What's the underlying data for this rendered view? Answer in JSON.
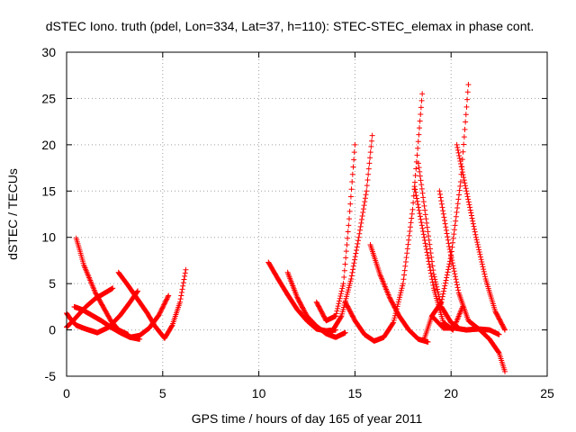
{
  "chart_data": {
    "type": "scatter",
    "title": "dSTEC Iono. truth (pdel, Lon=334, Lat=37, h=110): STEC-STEC_elemax in phase cont.",
    "xlabel": "GPS time / hours of day 165 of year 2011",
    "ylabel": "dSTEC  / TECUs",
    "xlim": [
      0,
      25
    ],
    "ylim": [
      -5,
      30
    ],
    "xticks": [
      0,
      5,
      10,
      15,
      20,
      25
    ],
    "yticks": [
      -5,
      0,
      5,
      10,
      15,
      20,
      25,
      30
    ],
    "xtick_labels": [
      "0",
      "5",
      "10",
      "15",
      "20",
      "25"
    ],
    "ytick_labels": [
      "-5",
      "0",
      "5",
      "10",
      "15",
      "20",
      "25",
      "30"
    ],
    "grid": true,
    "marker": "plus",
    "color": "#ff0000",
    "series": [
      {
        "x": [
          0.0,
          0.3,
          0.6,
          1.0,
          1.5,
          2.0,
          2.4
        ],
        "y": [
          0.3,
          0.9,
          1.6,
          2.5,
          3.4,
          4.0,
          4.5
        ]
      },
      {
        "x": [
          0.0,
          0.2,
          0.5,
          1.0,
          1.6,
          2.2,
          2.8,
          3.3,
          3.7
        ],
        "y": [
          1.8,
          1.2,
          0.5,
          0.1,
          -0.3,
          0.3,
          1.6,
          3.0,
          4.2
        ]
      },
      {
        "x": [
          0.4,
          0.8,
          1.3,
          1.8,
          2.3,
          2.8,
          3.3,
          3.8
        ],
        "y": [
          2.5,
          2.2,
          1.6,
          1.0,
          0.3,
          -0.3,
          -0.8,
          -1.0
        ]
      },
      {
        "x": [
          0.5,
          0.7,
          0.9,
          1.2,
          1.5,
          1.9,
          2.3,
          2.7,
          3.2
        ],
        "y": [
          9.9,
          8.5,
          7.0,
          5.5,
          4.0,
          2.5,
          1.0,
          0.0,
          -0.5
        ]
      },
      {
        "x": [
          2.7,
          3.2,
          3.7,
          4.2,
          4.6,
          5.1,
          5.5,
          5.9,
          6.2
        ],
        "y": [
          6.2,
          4.8,
          3.3,
          1.8,
          0.4,
          -0.9,
          0.5,
          3.0,
          6.5
        ]
      },
      {
        "x": [
          3.3,
          3.8,
          4.3,
          4.8,
          5.3
        ],
        "y": [
          -0.8,
          -0.6,
          0.2,
          1.6,
          3.7
        ]
      },
      {
        "x": [
          10.5,
          11.0,
          11.5,
          12.0,
          12.5,
          13.0,
          13.5,
          14.0
        ],
        "y": [
          7.3,
          5.5,
          3.8,
          2.2,
          1.0,
          0.1,
          -0.1,
          0.0
        ]
      },
      {
        "x": [
          11.5,
          12.0,
          12.5,
          13.0,
          13.5,
          14.0,
          14.5
        ],
        "y": [
          6.2,
          3.5,
          1.5,
          0.4,
          -0.4,
          -0.8,
          -0.3
        ]
      },
      {
        "x": [
          13.0,
          13.5,
          14.0,
          14.4,
          14.7,
          15.0
        ],
        "y": [
          3.0,
          1.0,
          1.5,
          5.0,
          12.0,
          20.0
        ]
      },
      {
        "x": [
          13.8,
          14.3,
          14.8,
          15.2,
          15.6,
          15.9
        ],
        "y": [
          -0.2,
          1.5,
          5.5,
          10.0,
          15.0,
          21.0
        ]
      },
      {
        "x": [
          14.5,
          15.0,
          15.5,
          16.0,
          16.5,
          17.0,
          17.5,
          18.0,
          18.5
        ],
        "y": [
          3.0,
          1.0,
          -0.5,
          -1.2,
          -0.8,
          0.8,
          5.0,
          13.0,
          25.5
        ]
      },
      {
        "x": [
          15.8,
          16.3,
          16.8,
          17.3,
          17.8,
          18.3,
          18.8
        ],
        "y": [
          9.2,
          6.0,
          3.5,
          1.5,
          0.0,
          -1.0,
          -1.3
        ]
      },
      {
        "x": [
          18.1,
          18.6,
          19.1,
          19.6,
          20.1,
          20.6
        ],
        "y": [
          15.5,
          10.0,
          4.5,
          0.8,
          0.0,
          2.5
        ]
      },
      {
        "x": [
          18.3,
          18.7,
          19.1,
          19.5,
          20.0,
          20.4
        ],
        "y": [
          18.0,
          12.0,
          6.0,
          2.5,
          0.8,
          0.2
        ]
      },
      {
        "x": [
          18.6,
          19.0,
          19.5,
          20.0,
          20.5,
          20.9
        ],
        "y": [
          -1.0,
          1.5,
          3.0,
          8.0,
          16.0,
          26.5
        ]
      },
      {
        "x": [
          19.4,
          19.9,
          20.4,
          20.9,
          21.5,
          22.0,
          22.5,
          22.8
        ],
        "y": [
          15.0,
          9.0,
          4.0,
          1.0,
          0.0,
          -1.0,
          -2.5,
          -4.5
        ]
      },
      {
        "x": [
          20.3,
          20.8,
          21.3,
          21.8,
          22.3,
          22.8
        ],
        "y": [
          20.0,
          15.0,
          10.0,
          5.5,
          2.0,
          0.0
        ]
      },
      {
        "x": [
          19.0,
          19.6,
          20.2,
          20.8,
          21.4,
          22.0,
          22.5
        ],
        "y": [
          1.5,
          0.2,
          0.2,
          0.0,
          0.1,
          0.0,
          -0.5
        ]
      }
    ]
  }
}
